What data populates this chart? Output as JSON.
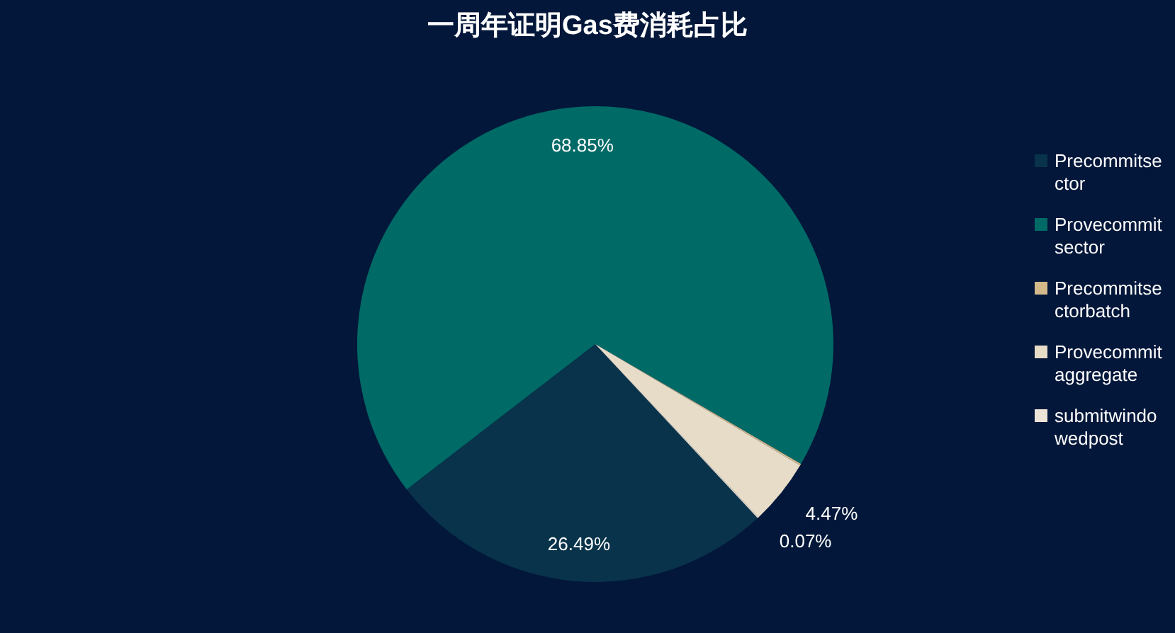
{
  "chart_data": {
    "type": "pie",
    "title": "一周年证明Gas费消耗占比",
    "categories": [
      "Precommitsector",
      "Provecommitsector",
      "Precommitsectorbatch",
      "Provecommitaggregate",
      "submitwindowedpost"
    ],
    "values": [
      26.49,
      68.85,
      0.12,
      4.47,
      0.07
    ],
    "value_labels": [
      "26.49%",
      "68.85%",
      null,
      "4.47%",
      "0.07%"
    ],
    "colors": [
      "#08334a",
      "#006a66",
      "#d4b98a",
      "#e7dcc8",
      "#ece4d6"
    ],
    "legend": "right"
  }
}
